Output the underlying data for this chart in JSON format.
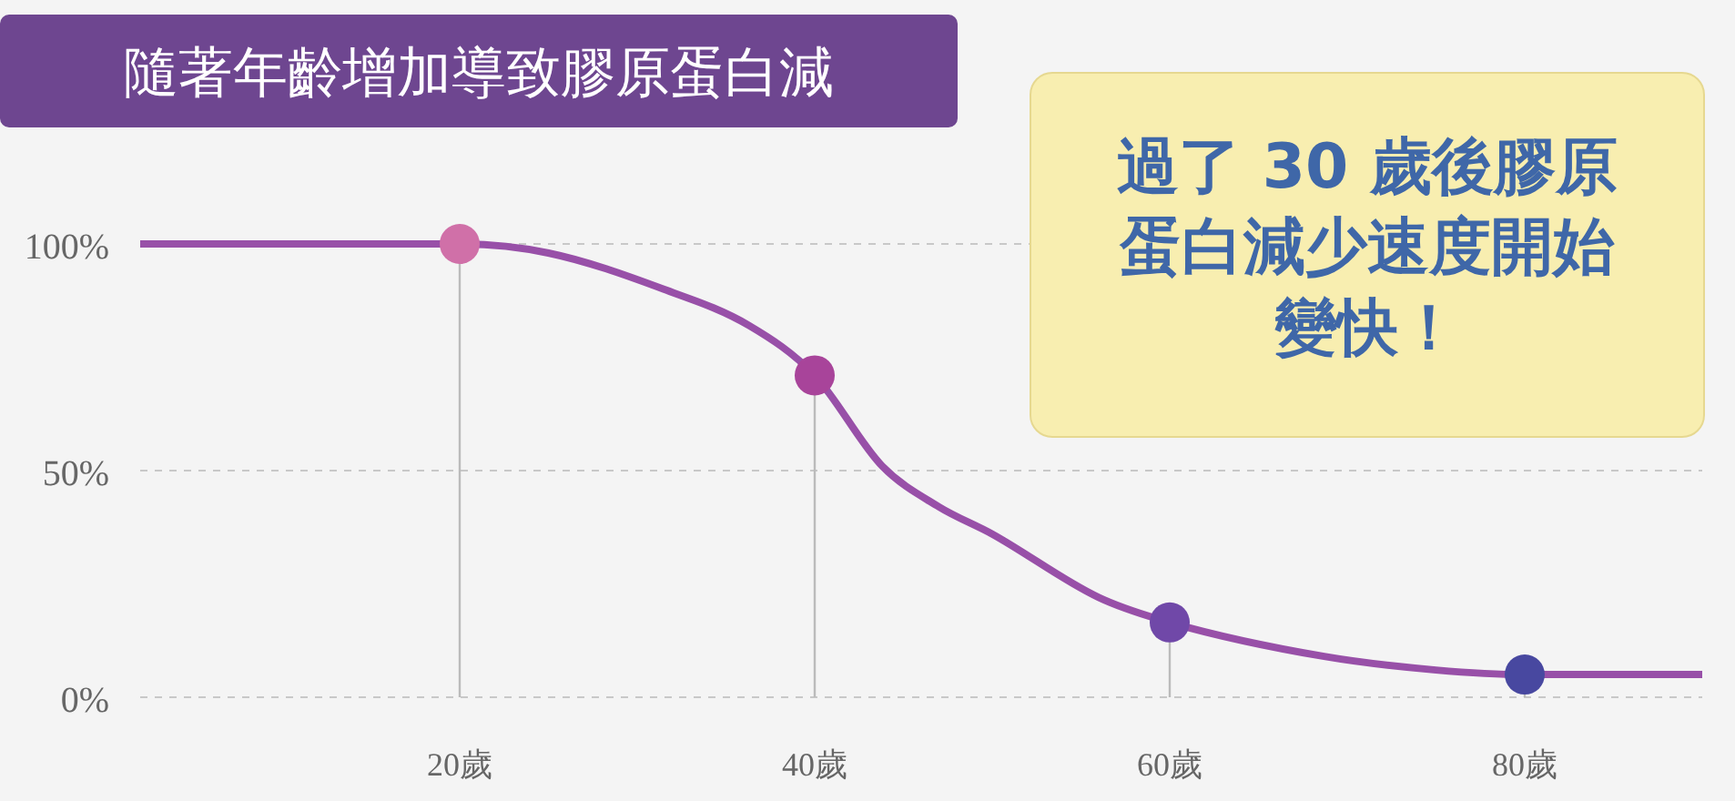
{
  "chart_data": {
    "type": "line",
    "title": "隨著年齡增加導致膠原蛋白減",
    "annotations": [
      "過了 30 歲後膠原蛋白減少速度開始變快！"
    ],
    "xlim": [
      2,
      90
    ],
    "ylim": [
      0,
      100
    ],
    "xticks": [
      {
        "value": 20,
        "label": "20歲"
      },
      {
        "value": 40,
        "label": "40歲"
      },
      {
        "value": 60,
        "label": "60歲"
      },
      {
        "value": 80,
        "label": "80歲"
      }
    ],
    "yticks": [
      {
        "value": 0,
        "label": "0%"
      },
      {
        "value": 50,
        "label": "50%"
      },
      {
        "value": 100,
        "label": "100%"
      }
    ],
    "grid": "y",
    "legend": false,
    "series": [
      {
        "color": "#9850a8",
        "marker": "none",
        "x": [
          2,
          10,
          20,
          25,
          31.5,
          36.3,
          40,
          43.8,
          47,
          50,
          56,
          60,
          68.7,
          75,
          80,
          90
        ],
        "values": [
          100,
          100,
          100,
          98,
          90,
          82,
          71,
          51,
          42,
          36,
          22,
          16.5,
          9,
          6,
          5,
          5
        ]
      },
      {
        "type": "lollipop",
        "colors": [
          "#d070a8",
          "#a8449a",
          "#7048a8",
          "#4848a0"
        ],
        "marker": "circle",
        "x": [
          20,
          40,
          60,
          80
        ],
        "values": [
          100,
          71,
          16.5,
          5
        ]
      }
    ]
  }
}
